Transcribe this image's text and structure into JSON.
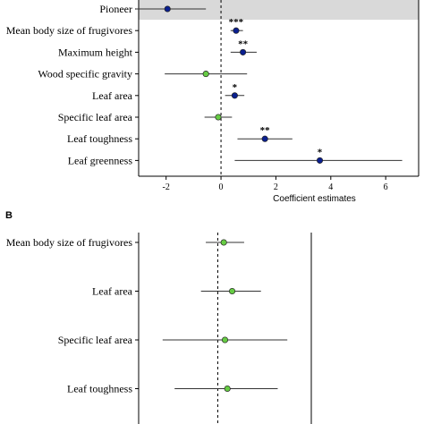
{
  "chart_data": [
    {
      "type": "scatter",
      "panel_label": "",
      "xlabel": "Coefficient estimates",
      "xticks": [
        "-2",
        "0",
        "2",
        "4",
        "6"
      ],
      "xlim": [
        -3.0,
        7.2
      ],
      "reference_line": 0,
      "highlighted_row": "Pioneer",
      "colors": {
        "significant": "#0a1f8f",
        "nonsignificant": "#66cc44",
        "highlight_band": "#d9d9d9"
      },
      "rows": [
        {
          "label": "Pioneer",
          "estimate": -1.95,
          "lower": -3.1,
          "upper": -0.55,
          "significance": "",
          "significant": true
        },
        {
          "label": "Mean body size of frugivores",
          "estimate": 0.55,
          "lower": 0.35,
          "upper": 0.8,
          "significance": "***",
          "significant": true
        },
        {
          "label": "Maximum height",
          "estimate": 0.8,
          "lower": 0.35,
          "upper": 1.3,
          "significance": "**",
          "significant": true
        },
        {
          "label": "Wood specific gravity",
          "estimate": -0.55,
          "lower": -2.05,
          "upper": 0.95,
          "significance": "",
          "significant": false
        },
        {
          "label": "Leaf area",
          "estimate": 0.5,
          "lower": 0.15,
          "upper": 0.85,
          "significance": "*",
          "significant": true
        },
        {
          "label": "Specific leaf area",
          "estimate": -0.1,
          "lower": -0.6,
          "upper": 0.4,
          "significance": "",
          "significant": false
        },
        {
          "label": "Leaf toughness",
          "estimate": 1.6,
          "lower": 0.6,
          "upper": 2.6,
          "significance": "**",
          "significant": true
        },
        {
          "label": "Leaf greenness",
          "estimate": 3.6,
          "lower": 0.5,
          "upper": 6.6,
          "significance": "*",
          "significant": true
        }
      ]
    },
    {
      "type": "scatter",
      "panel_label": "B",
      "xlim": [
        -3.3,
        3.9
      ],
      "reference_line": 0,
      "colors": {
        "nonsignificant": "#66cc44"
      },
      "rows": [
        {
          "label": "Mean body size of frugivores",
          "estimate": 0.25,
          "lower": -0.5,
          "upper": 1.1,
          "significance": "",
          "significant": false
        },
        {
          "label": "Leaf area",
          "estimate": 0.6,
          "lower": -0.7,
          "upper": 1.8,
          "significance": "",
          "significant": false
        },
        {
          "label": "Specific leaf area",
          "estimate": 0.3,
          "lower": -2.3,
          "upper": 2.9,
          "significance": "",
          "significant": false
        },
        {
          "label": "Leaf toughness",
          "estimate": 0.4,
          "lower": -1.8,
          "upper": 2.5,
          "significance": "",
          "significant": false
        }
      ]
    }
  ]
}
